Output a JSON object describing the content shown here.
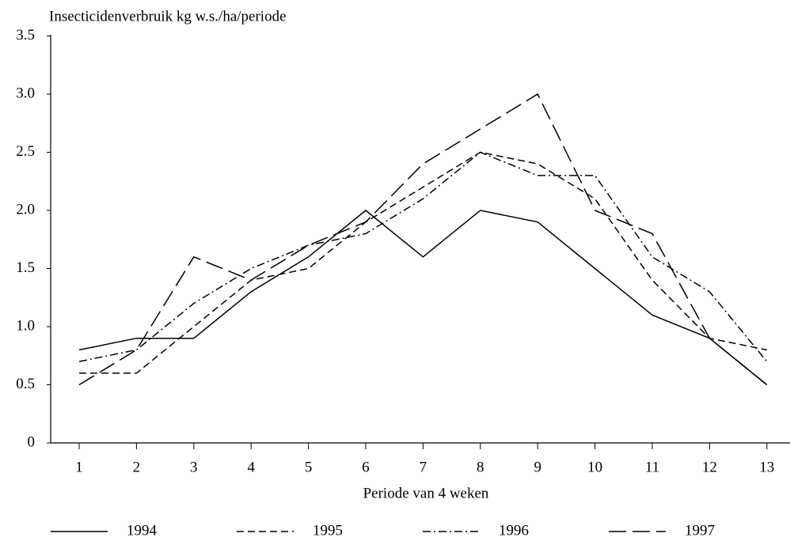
{
  "chart_data": {
    "type": "line",
    "title": "Insecticidenverbruik kg w.s./ha/periode",
    "x_label": "Periode van 4 weken",
    "categories": [
      "1",
      "2",
      "3",
      "4",
      "5",
      "6",
      "7",
      "8",
      "9",
      "10",
      "11",
      "12",
      "13"
    ],
    "series": [
      {
        "name": "1994",
        "color": "#000000",
        "dash": "solid",
        "values": [
          0.8,
          0.9,
          0.9,
          1.3,
          1.6,
          2.0,
          1.6,
          2.0,
          1.9,
          1.5,
          1.1,
          0.9,
          0.5
        ]
      },
      {
        "name": "1995",
        "color": "#000000",
        "dash": "dashed",
        "values": [
          0.6,
          0.6,
          1.0,
          1.4,
          1.5,
          1.9,
          2.2,
          2.5,
          2.4,
          2.1,
          1.4,
          0.9,
          0.8
        ]
      },
      {
        "name": "1996",
        "color": "#000000",
        "dash": "dashdot",
        "values": [
          0.7,
          0.8,
          1.2,
          1.5,
          1.7,
          1.8,
          2.1,
          2.5,
          2.3,
          2.3,
          1.6,
          1.3,
          0.7
        ]
      },
      {
        "name": "1997",
        "color": "#000000",
        "dash": "longdash",
        "values": [
          0.5,
          0.8,
          1.6,
          1.4,
          1.7,
          1.9,
          2.4,
          2.7,
          3.0,
          2.0,
          1.8,
          0.9,
          0.5
        ]
      }
    ],
    "ylim": [
      0,
      3.5
    ],
    "yticks": [
      0,
      {
        "value": 0.5,
        "label": "0.5"
      },
      {
        "value": 1,
        "label": "1.0"
      },
      1.5,
      {
        "value": 2,
        "label": "2.0"
      },
      2.5,
      {
        "value": 3,
        "label": "3.0"
      },
      3.5
    ],
    "legend": "bottom"
  }
}
